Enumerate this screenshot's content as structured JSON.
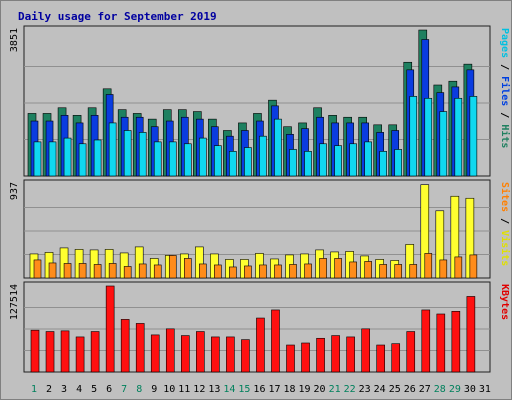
{
  "chart_data": {
    "type": "bar",
    "title": "Daily usage for September 2019",
    "days": [
      "1",
      "2",
      "3",
      "4",
      "5",
      "6",
      "7",
      "8",
      "9",
      "10",
      "11",
      "12",
      "13",
      "14",
      "15",
      "16",
      "17",
      "18",
      "19",
      "20",
      "21",
      "22",
      "23",
      "24",
      "25",
      "26",
      "27",
      "28",
      "29",
      "30",
      "31"
    ],
    "weekend_days": [
      "1",
      "7",
      "8",
      "14",
      "15",
      "21",
      "22",
      "28",
      "29"
    ],
    "panels": [
      {
        "id": "pages-files-hits",
        "ymax": 3851,
        "ymax_label": "3851",
        "right_label_parts": [
          {
            "text": "Pages",
            "color": "#00C0E0"
          },
          {
            "text": " / ",
            "color": "#000000"
          },
          {
            "text": "Files",
            "color": "#0040E0"
          },
          {
            "text": " / ",
            "color": "#000000"
          },
          {
            "text": "Hits",
            "color": "#208060"
          }
        ],
        "series": [
          {
            "name": "Hits",
            "color": "#1E8060",
            "values": [
              1650,
              1650,
              1800,
              1600,
              1800,
              2300,
              1750,
              1650,
              1500,
              1750,
              1750,
              1700,
              1500,
              1200,
              1400,
              1650,
              2000,
              1300,
              1400,
              1800,
              1600,
              1550,
              1550,
              1350,
              1350,
              3000,
              3850,
              2400,
              2500,
              2950,
              null
            ]
          },
          {
            "name": "Files",
            "color": "#0A3CE0",
            "values": [
              1450,
              1450,
              1600,
              1400,
              1600,
              2150,
              1550,
              1550,
              1300,
              1450,
              1550,
              1500,
              1300,
              1050,
              1200,
              1450,
              1850,
              1100,
              1250,
              1550,
              1400,
              1400,
              1400,
              1150,
              1200,
              2800,
              3600,
              2200,
              2350,
              2800,
              null
            ]
          },
          {
            "name": "Pages",
            "color": "#10D8F0",
            "values": [
              900,
              900,
              1000,
              850,
              950,
              1400,
              1200,
              1150,
              900,
              900,
              850,
              1000,
              800,
              650,
              750,
              1050,
              1500,
              700,
              650,
              850,
              800,
              850,
              900,
              650,
              700,
              2100,
              2050,
              1700,
              2050,
              2100,
              null
            ]
          }
        ]
      },
      {
        "id": "sites-visits",
        "ymax": 937,
        "ymax_label": "937",
        "right_label_parts": [
          {
            "text": "Sites",
            "color": "#FF8000"
          },
          {
            "text": " / ",
            "color": "#000000"
          },
          {
            "text": "Visits",
            "color": "#E0E000"
          }
        ],
        "series": [
          {
            "name": "Visits",
            "color": "#FFFF30",
            "values": [
              240,
              255,
              300,
              285,
              280,
              285,
              250,
              310,
              195,
              225,
              240,
              310,
              240,
              185,
              185,
              245,
              190,
              230,
              240,
              280,
              260,
              265,
              220,
              185,
              175,
              335,
              930,
              670,
              815,
              795,
              null
            ]
          },
          {
            "name": "Sites",
            "color": "#FF8C1A",
            "values": [
              180,
              150,
              145,
              145,
              135,
              145,
              115,
              140,
              130,
              225,
              195,
              140,
              130,
              110,
              120,
              130,
              130,
              135,
              140,
              195,
              195,
              160,
              165,
              135,
              135,
              135,
              245,
              180,
              210,
              230,
              null
            ]
          }
        ]
      },
      {
        "id": "kbytes",
        "ymax": 127514,
        "ymax_label": "127514",
        "right_label_parts": [
          {
            "text": "KBytes",
            "color": "#E00000"
          }
        ],
        "series": [
          {
            "name": "KBytes",
            "color": "#FF1010",
            "values": [
              62000,
              60000,
              61000,
              52000,
              60000,
              127514,
              78000,
              72000,
              55000,
              64000,
              54000,
              60000,
              52000,
              52000,
              48000,
              80000,
              92000,
              40000,
              43000,
              50000,
              54000,
              52000,
              64000,
              40000,
              42000,
              60000,
              92000,
              86000,
              90000,
              112000,
              null
            ]
          }
        ]
      }
    ]
  }
}
